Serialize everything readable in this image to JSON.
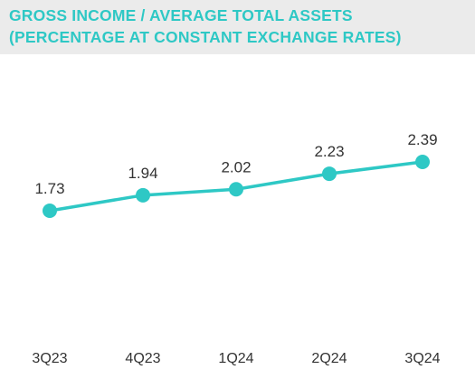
{
  "title_line1": "GROSS INCOME / AVERAGE TOTAL ASSETS",
  "title_line2": "(PERCENTAGE AT CONSTANT EXCHANGE RATES)",
  "colors": {
    "series": "#2ec8c5",
    "title": "#2ec8c5",
    "title_bg": "#ebebeb",
    "label": "#333333"
  },
  "chart_data": {
    "type": "line",
    "title": "GROSS INCOME / AVERAGE TOTAL ASSETS (PERCENTAGE AT CONSTANT EXCHANGE RATES)",
    "categories": [
      "3Q23",
      "4Q23",
      "1Q24",
      "2Q24",
      "3Q24"
    ],
    "series": [
      {
        "values": [
          1.73,
          1.94,
          2.02,
          2.23,
          2.39
        ],
        "labels": [
          "1.73",
          "1.94",
          "2.02",
          "2.23",
          "2.39"
        ]
      }
    ],
    "xlabel": "",
    "ylabel": "",
    "grid": false,
    "legend": "none"
  }
}
